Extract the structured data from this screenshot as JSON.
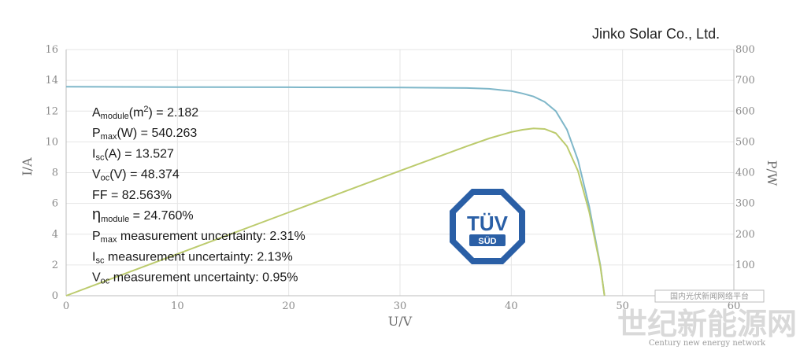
{
  "company": "Jinko Solar Co., Ltd.",
  "chart_data": {
    "type": "line",
    "xlabel": "U/V",
    "ylabel": "I/A",
    "y2label": "P/W",
    "xlim": [
      0,
      60
    ],
    "ylim": [
      0,
      16
    ],
    "y2lim": [
      0,
      800
    ],
    "xticks": [
      "0",
      "10",
      "20",
      "30",
      "40",
      "50",
      "60"
    ],
    "yticks": [
      "0",
      "2",
      "4",
      "6",
      "8",
      "10",
      "12",
      "14",
      "16"
    ],
    "y2ticks": [
      "0",
      "100",
      "200",
      "300",
      "400",
      "500",
      "600",
      "700",
      "800"
    ],
    "grid": true,
    "series": [
      {
        "axis": "left",
        "color": "#7fb7c9",
        "x": [
          0,
          10,
          20,
          30,
          36,
          38,
          40,
          41,
          42,
          43,
          44,
          45,
          46,
          47,
          48,
          48.374
        ],
        "y": [
          13.58,
          13.56,
          13.55,
          13.53,
          13.5,
          13.45,
          13.3,
          13.15,
          12.95,
          12.6,
          12.0,
          10.8,
          8.8,
          5.8,
          2.0,
          0
        ]
      },
      {
        "axis": "right",
        "color": "#bccb6d",
        "x": [
          0,
          10,
          20,
          30,
          36,
          38,
          40,
          41,
          42,
          43,
          44,
          45,
          46,
          47,
          48,
          48.374
        ],
        "y": [
          0,
          135.6,
          271,
          405.9,
          486,
          511.1,
          532,
          539.2,
          543.9,
          541.8,
          528,
          486,
          404.8,
          272.6,
          96,
          0
        ]
      }
    ],
    "annotations": [
      {
        "label": "A",
        "sub": "module",
        "rest": "(m",
        "sup": "2",
        "tail": ") = 2.182"
      },
      {
        "label": "P",
        "sub": "max",
        "rest": "(W) = 540.263"
      },
      {
        "label": "I",
        "sub": "sc",
        "rest": "(A) = 13.527"
      },
      {
        "label": "V",
        "sub": "oc",
        "rest": "(V) = 48.374"
      },
      {
        "label": "FF",
        "sub": "",
        "rest": "  = 82.563%"
      },
      {
        "label": "η",
        "sub": "module",
        "rest": " = 24.760%"
      },
      {
        "label": "P",
        "sub": "max",
        "rest": " measurement uncertainty: 2.31%"
      },
      {
        "label": "I",
        "sub": "sc",
        "rest": " measurement uncertainty: 2.13%"
      },
      {
        "label": "V",
        "sub": "oc",
        "rest": " measurement uncertainty: 0.95%"
      }
    ]
  },
  "badge": {
    "line1": "TÜV",
    "line2": "SÜD",
    "color": "#2a5fa6"
  },
  "watermark": {
    "top": "国内光伏新闻网络平台",
    "main": "世纪新能源网",
    "sub": "Century new energy network"
  }
}
